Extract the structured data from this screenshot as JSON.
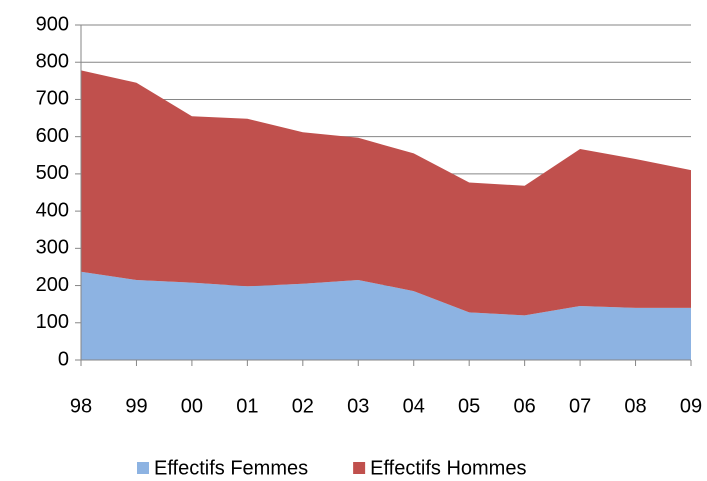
{
  "chart_data": {
    "type": "stacked_area",
    "categories": [
      "98",
      "99",
      "00",
      "01",
      "02",
      "03",
      "04",
      "05",
      "06",
      "07",
      "08",
      "09"
    ],
    "series": [
      {
        "name": "Effectifs Femmes",
        "color": "#8db3e2",
        "values": [
          237,
          215,
          208,
          198,
          205,
          215,
          185,
          128,
          120,
          145,
          140,
          140
        ]
      },
      {
        "name": "Effectifs Hommes",
        "color": "#c0504d",
        "values": [
          541,
          530,
          447,
          450,
          407,
          382,
          370,
          349,
          348,
          422,
          400,
          370
        ]
      }
    ],
    "ylim": [
      0,
      900
    ],
    "yticks": [
      0,
      100,
      200,
      300,
      400,
      500,
      600,
      700,
      800,
      900
    ],
    "grid": true,
    "legend": "bottom"
  }
}
